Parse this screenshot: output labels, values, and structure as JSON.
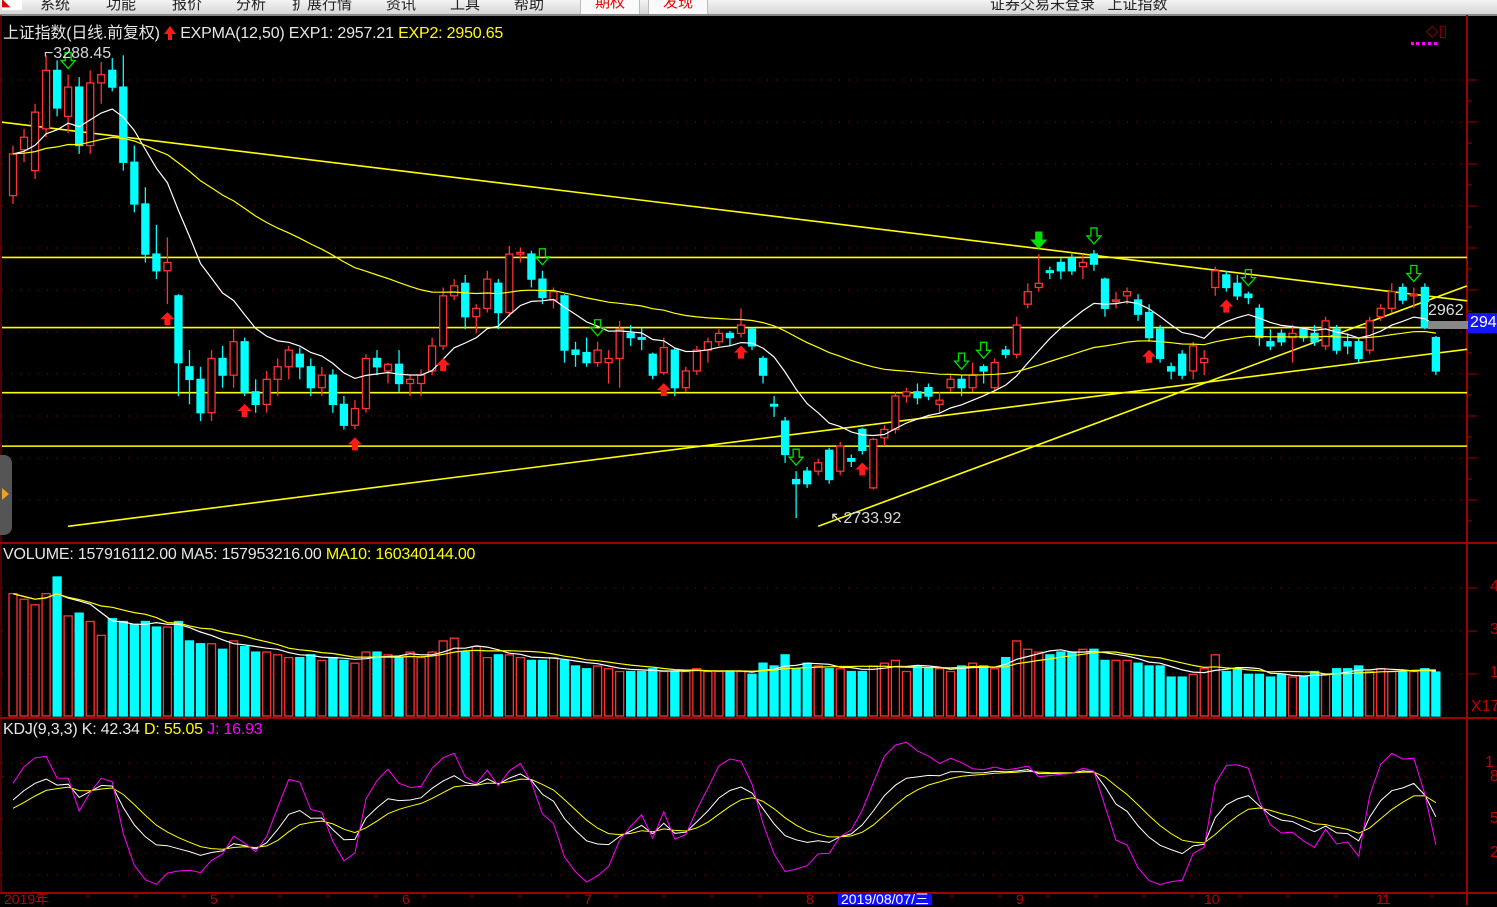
{
  "menubar": {
    "items": [
      "系统",
      "功能",
      "报价",
      "分析",
      "扩展行情",
      "资讯",
      "工具",
      "帮助"
    ],
    "buttons": [
      "期权",
      "发现"
    ],
    "title": "证券交易未登录   上证指数"
  },
  "main_legend": {
    "name": "上证指数(日线.前复权)",
    "indicator": "EXPMA(12,50)",
    "exp1": "EXP1: 2957.21",
    "exp2": "EXP2: 2950.65"
  },
  "volume_legend": {
    "volume": "VOLUME: 157916112.00",
    "ma5": "MA5: 157953216.00",
    "ma10": "MA10: 160340144.00"
  },
  "kdj_legend": {
    "name": "KDJ(9,3,3)",
    "k": "K: 42.34",
    "d": "D: 55.05",
    "j": "J: 16.93"
  },
  "price_labels": {
    "high": "3288.45",
    "low": "2733.92",
    "last": "2962",
    "current": "294"
  },
  "volume_axis": [
    "4",
    "3",
    "1",
    "X17"
  ],
  "kdj_axis": [
    "1",
    "8",
    "5",
    "2"
  ],
  "x_axis": [
    "2019年",
    "5",
    "6",
    "7",
    "8",
    "9",
    "10",
    "11"
  ],
  "cursor_date": "2019/08/07/三",
  "colors": {
    "up": "#ff3232",
    "down": "#00ffff",
    "exp1": "#ffffff",
    "exp2": "#ffff00",
    "k": "#ffffff",
    "d": "#ffff00",
    "j": "#ff00ff",
    "grid": "#a00000",
    "drawn_line": "#ffff00"
  },
  "chart_data": {
    "type": "candlestick",
    "title": "上证指数(日线.前复权)",
    "ylim": [
      2700,
      3300
    ],
    "ohlc": [
      [
        3120,
        3180,
        3110,
        3170
      ],
      [
        3175,
        3200,
        3160,
        3190
      ],
      [
        3150,
        3230,
        3140,
        3220
      ],
      [
        3200,
        3288,
        3190,
        3270
      ],
      [
        3270,
        3282,
        3215,
        3225
      ],
      [
        3215,
        3265,
        3195,
        3250
      ],
      [
        3250,
        3262,
        3170,
        3180
      ],
      [
        3180,
        3270,
        3170,
        3255
      ],
      [
        3255,
        3280,
        3230,
        3265
      ],
      [
        3270,
        3285,
        3245,
        3250
      ],
      [
        3250,
        3288,
        3150,
        3160
      ],
      [
        3160,
        3180,
        3100,
        3110
      ],
      [
        3110,
        3130,
        3040,
        3050
      ],
      [
        3050,
        3085,
        3020,
        3030
      ],
      [
        3030,
        3070,
        2990,
        3040
      ],
      [
        3000,
        3002,
        2880,
        2920
      ],
      [
        2915,
        2935,
        2870,
        2900
      ],
      [
        2900,
        2915,
        2850,
        2860
      ],
      [
        2860,
        2935,
        2850,
        2925
      ],
      [
        2925,
        2940,
        2890,
        2905
      ],
      [
        2905,
        2960,
        2890,
        2945
      ],
      [
        2945,
        2950,
        2880,
        2885
      ],
      [
        2885,
        2900,
        2860,
        2870
      ],
      [
        2870,
        2910,
        2860,
        2900
      ],
      [
        2900,
        2925,
        2880,
        2915
      ],
      [
        2915,
        2940,
        2900,
        2935
      ],
      [
        2930,
        2938,
        2900,
        2915
      ],
      [
        2915,
        2925,
        2880,
        2890
      ],
      [
        2890,
        2915,
        2880,
        2905
      ],
      [
        2905,
        2912,
        2860,
        2870
      ],
      [
        2870,
        2880,
        2840,
        2845
      ],
      [
        2845,
        2875,
        2840,
        2865
      ],
      [
        2865,
        2930,
        2860,
        2925
      ],
      [
        2925,
        2935,
        2905,
        2915
      ],
      [
        2910,
        2920,
        2895,
        2918
      ],
      [
        2918,
        2935,
        2885,
        2895
      ],
      [
        2895,
        2905,
        2880,
        2900
      ],
      [
        2895,
        2912,
        2880,
        2905
      ],
      [
        2910,
        2950,
        2905,
        2940
      ],
      [
        2940,
        3010,
        2935,
        3000
      ],
      [
        3000,
        3020,
        2995,
        3012
      ],
      [
        3015,
        3025,
        2960,
        2975
      ],
      [
        2975,
        2990,
        2955,
        2985
      ],
      [
        2985,
        3030,
        2980,
        3020
      ],
      [
        3015,
        3020,
        2960,
        2980
      ],
      [
        2980,
        3060,
        2975,
        3050
      ],
      [
        3050,
        3058,
        3040,
        3052
      ],
      [
        3050,
        3054,
        3010,
        3020
      ],
      [
        3020,
        3030,
        2990,
        2998
      ],
      [
        2995,
        3010,
        2985,
        3005
      ],
      [
        3000,
        3002,
        2920,
        2935
      ],
      [
        2935,
        2945,
        2915,
        2930
      ],
      [
        2932,
        2950,
        2915,
        2920
      ],
      [
        2920,
        2945,
        2915,
        2935
      ],
      [
        2920,
        2935,
        2895,
        2925
      ],
      [
        2925,
        2970,
        2890,
        2960
      ],
      [
        2955,
        2965,
        2940,
        2950
      ],
      [
        2950,
        2962,
        2935,
        2948
      ],
      [
        2930,
        2932,
        2900,
        2905
      ],
      [
        2908,
        2950,
        2905,
        2938
      ],
      [
        2935,
        2938,
        2880,
        2890
      ],
      [
        2890,
        2915,
        2885,
        2910
      ],
      [
        2910,
        2940,
        2905,
        2935
      ],
      [
        2935,
        2950,
        2920,
        2945
      ],
      [
        2945,
        2960,
        2940,
        2955
      ],
      [
        2955,
        2958,
        2940,
        2950
      ],
      [
        2955,
        2985,
        2950,
        2965
      ],
      [
        2960,
        2962,
        2935,
        2940
      ],
      [
        2925,
        2928,
        2895,
        2905
      ],
      [
        2870,
        2880,
        2855,
        2868
      ],
      [
        2850,
        2855,
        2800,
        2810
      ],
      [
        2780,
        2790,
        2733.92,
        2775
      ],
      [
        2790,
        2795,
        2770,
        2775
      ],
      [
        2790,
        2805,
        2785,
        2800
      ],
      [
        2815,
        2818,
        2775,
        2780
      ],
      [
        2790,
        2825,
        2785,
        2820
      ],
      [
        2805,
        2810,
        2795,
        2802
      ],
      [
        2840,
        2842,
        2810,
        2815
      ],
      [
        2770,
        2830,
        2768,
        2828
      ],
      [
        2830,
        2845,
        2820,
        2840
      ],
      [
        2840,
        2885,
        2835,
        2880
      ],
      [
        2880,
        2890,
        2872,
        2885
      ],
      [
        2885,
        2895,
        2870,
        2878
      ],
      [
        2890,
        2895,
        2875,
        2880
      ],
      [
        2870,
        2885,
        2860,
        2875
      ],
      [
        2890,
        2905,
        2885,
        2900
      ],
      [
        2900,
        2905,
        2880,
        2890
      ],
      [
        2890,
        2920,
        2885,
        2905
      ],
      [
        2915,
        2918,
        2895,
        2910
      ],
      [
        2890,
        2925,
        2885,
        2920
      ],
      [
        2935,
        2940,
        2925,
        2930
      ],
      [
        2930,
        2975,
        2925,
        2965
      ],
      [
        2990,
        3015,
        2985,
        3005
      ],
      [
        3010,
        3050,
        3005,
        3015
      ],
      [
        3030,
        3035,
        3020,
        3028
      ],
      [
        3040,
        3045,
        3020,
        3030
      ],
      [
        3045,
        3050,
        3025,
        3030
      ],
      [
        3035,
        3050,
        3020,
        3040
      ],
      [
        3050,
        3055,
        3030,
        3038
      ],
      [
        3020,
        3022,
        2975,
        2985
      ],
      [
        2995,
        3005,
        2985,
        2995
      ],
      [
        3000,
        3010,
        2990,
        3005
      ],
      [
        2995,
        3002,
        2970,
        2978
      ],
      [
        2980,
        2990,
        2945,
        2950
      ],
      [
        2960,
        2965,
        2920,
        2925
      ],
      [
        2915,
        2920,
        2900,
        2910
      ],
      [
        2930,
        2935,
        2900,
        2905
      ],
      [
        2910,
        2945,
        2900,
        2940
      ],
      [
        2920,
        2935,
        2905,
        2925
      ],
      [
        3010,
        3035,
        3000,
        3030
      ],
      [
        3025,
        3030,
        3005,
        3010
      ],
      [
        3015,
        3025,
        2995,
        3000
      ],
      [
        3002,
        3005,
        2990,
        2998
      ],
      [
        2985,
        2990,
        2940,
        2950
      ],
      [
        2945,
        2960,
        2935,
        2940
      ],
      [
        2955,
        2960,
        2940,
        2945
      ],
      [
        2950,
        2965,
        2920,
        2955
      ],
      [
        2960,
        2962,
        2945,
        2950
      ],
      [
        2955,
        2965,
        2940,
        2945
      ],
      [
        2940,
        2975,
        2935,
        2970
      ],
      [
        2960,
        2965,
        2930,
        2935
      ],
      [
        2945,
        2955,
        2930,
        2940
      ],
      [
        2945,
        2950,
        2920,
        2925
      ],
      [
        2935,
        2975,
        2930,
        2970
      ],
      [
        2975,
        2990,
        2970,
        2985
      ],
      [
        2985,
        3015,
        2980,
        3005
      ],
      [
        3010,
        3015,
        2990,
        2995
      ],
      [
        3000,
        3010,
        2985,
        3002
      ],
      [
        3010,
        3015,
        2960,
        2962
      ],
      [
        2950,
        2952,
        2905,
        2910
      ]
    ],
    "volume": [
      440000000.0,
      420000000.0,
      400000000.0,
      440000000.0,
      500000000.0,
      360000000.0,
      370000000.0,
      340000000.0,
      290000000.0,
      350000000.0,
      340000000.0,
      330000000.0,
      340000000.0,
      320000000.0,
      320000000.0,
      340000000.0,
      270000000.0,
      260000000.0,
      260000000.0,
      240000000.0,
      270000000.0,
      250000000.0,
      230000000.0,
      230000000.0,
      220000000.0,
      210000000.0,
      210000000.0,
      220000000.0,
      200000000.0,
      210000000.0,
      200000000.0,
      190000000.0,
      230000000.0,
      230000000.0,
      220000000.0,
      210000000.0,
      230000000.0,
      210000000.0,
      230000000.0,
      270000000.0,
      280000000.0,
      230000000.0,
      250000000.0,
      210000000.0,
      220000000.0,
      220000000.0,
      210000000.0,
      200000000.0,
      200000000.0,
      210000000.0,
      200000000.0,
      180000000.0,
      170000000.0,
      180000000.0,
      170000000.0,
      160000000.0,
      160000000.0,
      160000000.0,
      170000000.0,
      160000000.0,
      160000000.0,
      160000000.0,
      170000000.0,
      160000000.0,
      160000000.0,
      160000000.0,
      160000000.0,
      150000000.0,
      190000000.0,
      180000000.0,
      220000000.0,
      170000000.0,
      190000000.0,
      180000000.0,
      170000000.0,
      170000000.0,
      160000000.0,
      160000000.0,
      180000000.0,
      190000000.0,
      200000000.0,
      160000000.0,
      180000000.0,
      170000000.0,
      170000000.0,
      160000000.0,
      180000000.0,
      190000000.0,
      180000000.0,
      170000000.0,
      210000000.0,
      270000000.0,
      240000000.0,
      230000000.0,
      220000000.0,
      230000000.0,
      230000000.0,
      240000000.0,
      240000000.0,
      200000000.0,
      200000000.0,
      200000000.0,
      190000000.0,
      180000000.0,
      180000000.0,
      140000000.0,
      140000000.0,
      150000000.0,
      170000000.0,
      220000000.0,
      160000000.0,
      170000000.0,
      150000000.0,
      150000000.0,
      140000000.0,
      150000000.0,
      140000000.0,
      140000000.0,
      160000000.0,
      150000000.0,
      170000000.0,
      170000000.0,
      180000000.0,
      160000000.0,
      170000000.0,
      160000000.0,
      160000000.0,
      160000000.0,
      170000000.0,
      158000000.0
    ],
    "horizontal_lines": [
      3046,
      2962,
      2884,
      2820
    ],
    "trend_lines": [
      [
        [
          -1,
          3208
        ],
        [
          132,
          2994
        ]
      ],
      [
        [
          5,
          2724
        ],
        [
          132,
          2936
        ]
      ],
      [
        [
          73,
          2724
        ],
        [
          132,
          3012
        ]
      ]
    ],
    "buy_signals": [
      14,
      21,
      31,
      39,
      59,
      66,
      77,
      103,
      110
    ],
    "sell_signals": [
      5,
      48,
      53,
      71,
      86,
      88,
      98,
      112,
      127
    ],
    "strong_sell_signals": [
      93
    ],
    "indicators": [
      "EXPMA(12,50)",
      "VOLUME MA5/MA10",
      "KDJ(9,3,3)"
    ]
  }
}
